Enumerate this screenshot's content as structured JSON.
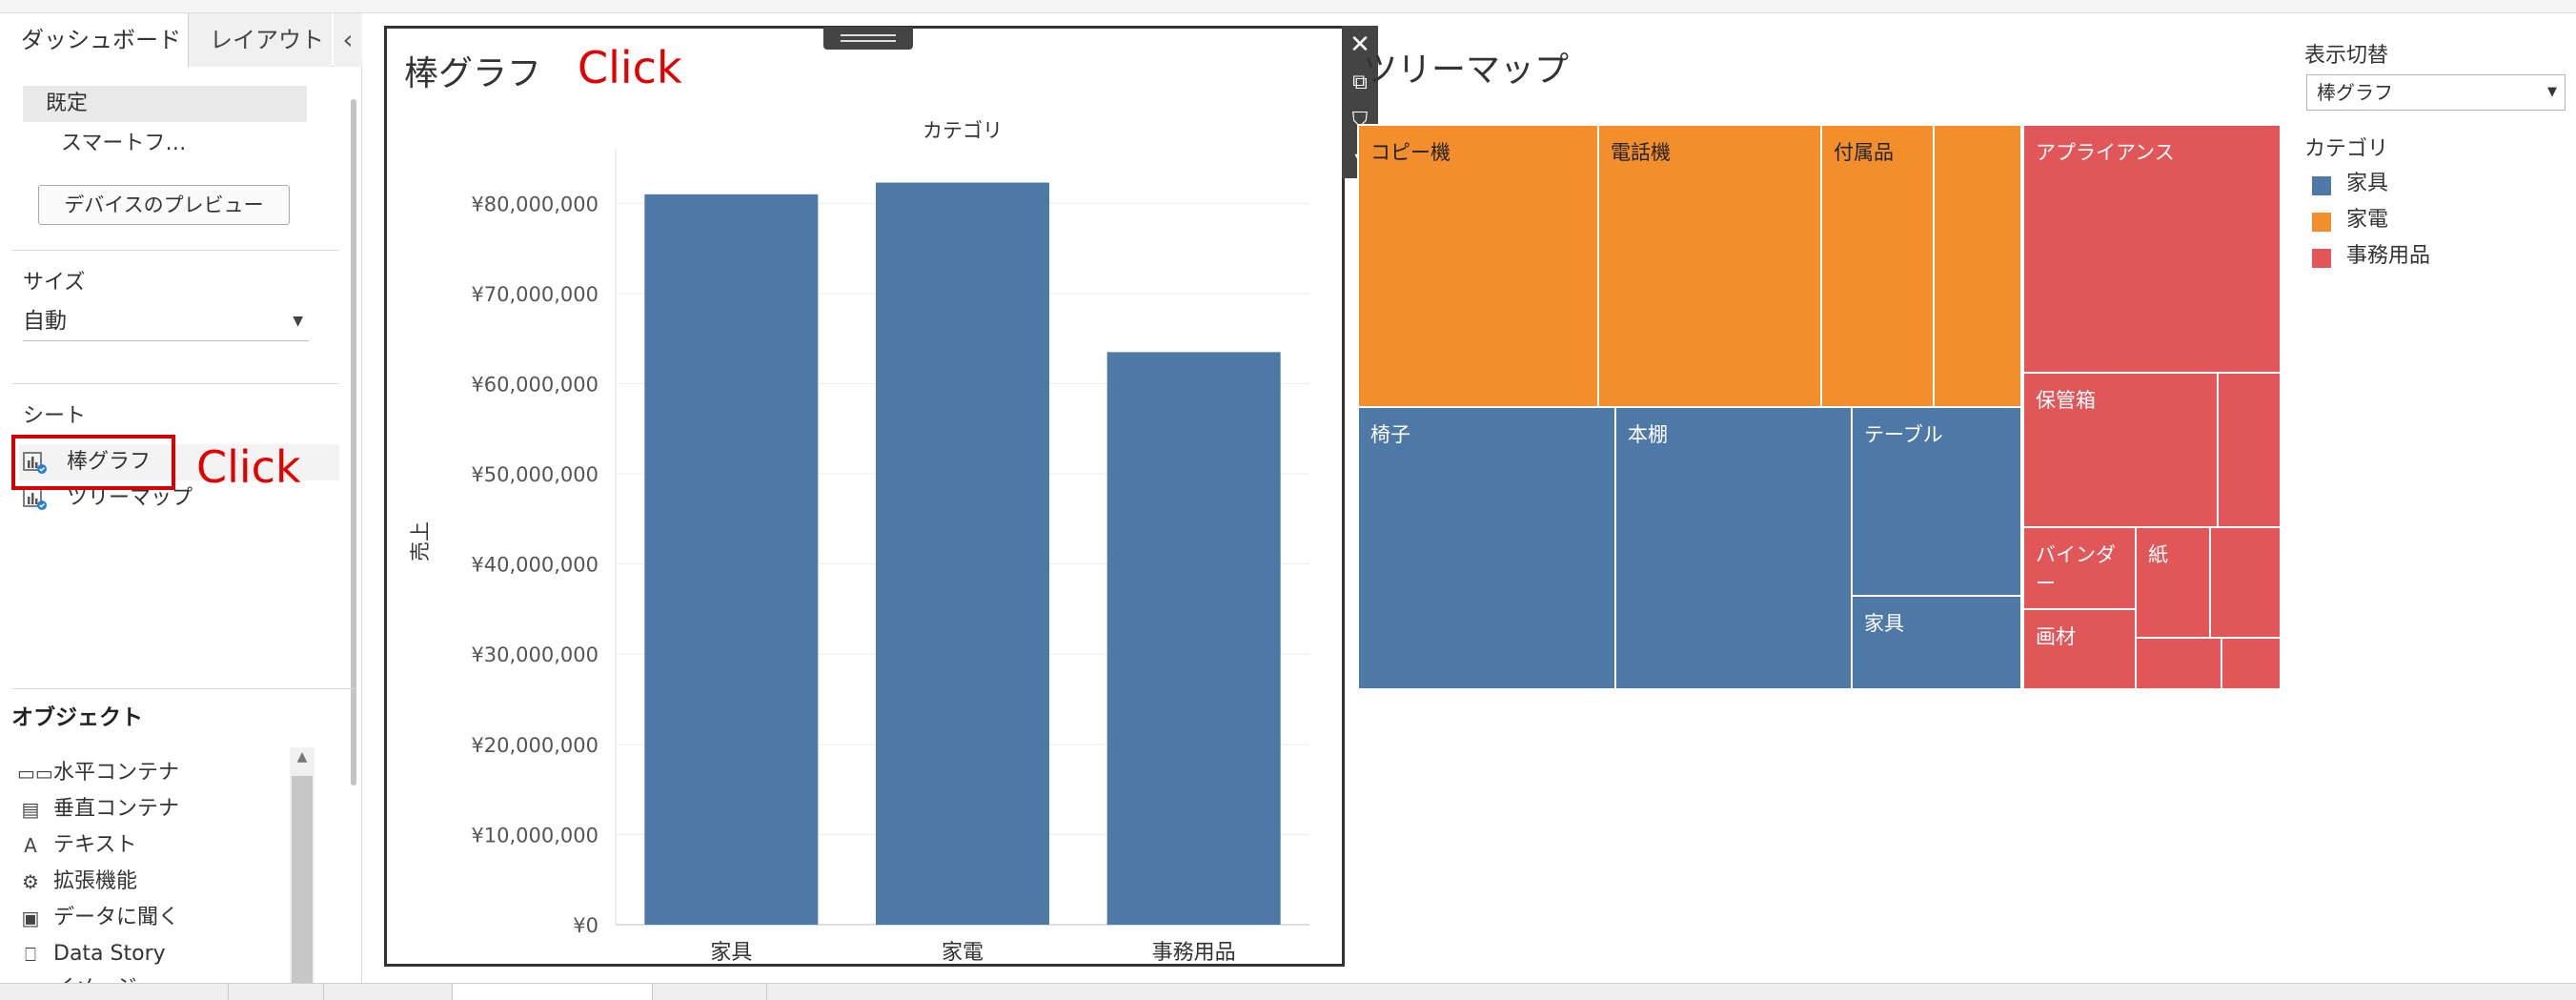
{
  "sidebar": {
    "tabs": [
      "ダッシュボード",
      "レイアウト"
    ],
    "collapse_icon": "‹",
    "device": {
      "preset": "既定",
      "sub": "スマートフ…",
      "preview_button": "デバイスのプレビュー"
    },
    "size": {
      "label": "サイズ",
      "value": "自動"
    },
    "sheets": {
      "label": "シート",
      "items": [
        "棒グラフ",
        "ツリーマップ"
      ],
      "annotation": "Click"
    },
    "objects": {
      "label": "オブジェクト",
      "items": [
        {
          "icon": "▭▭",
          "label": "水平コンテナ"
        },
        {
          "icon": "▤",
          "label": "垂直コンテナ"
        },
        {
          "icon": "A",
          "label": "テキスト"
        },
        {
          "icon": "⚙",
          "label": "拡張機能"
        },
        {
          "icon": "▣",
          "label": "データに聞く"
        },
        {
          "icon": "⎕",
          "label": "Data Story"
        },
        {
          "icon": "▨",
          "label": "イメージ"
        }
      ]
    }
  },
  "bar_panel": {
    "title": "棒グラフ",
    "annotation": "Click",
    "controls": [
      "✕",
      "⧉",
      "⛉",
      "▾"
    ]
  },
  "chart_data": {
    "type": "bar",
    "title": "カテゴリ",
    "xlabel": "",
    "ylabel": "売上",
    "categories": [
      "家具",
      "家電",
      "事務用品"
    ],
    "values": [
      81000000,
      82300000,
      63500000
    ],
    "ylim": [
      0,
      85000000
    ],
    "yticks": [
      0,
      10000000,
      20000000,
      30000000,
      40000000,
      50000000,
      60000000,
      70000000,
      80000000
    ],
    "ytick_labels": [
      "¥0",
      "¥10,000,000",
      "¥20,000,000",
      "¥30,000,000",
      "¥40,000,000",
      "¥50,000,000",
      "¥60,000,000",
      "¥70,000,000",
      "¥80,000,000"
    ],
    "color": "#4e79a7",
    "grid": true
  },
  "treemap": {
    "title": "ツリーマップ",
    "cells": {
      "copier": "コピー機",
      "phone": "電話機",
      "accessories": "付属品",
      "appliance": "アプライアンス",
      "chair": "椅子",
      "bookshelf": "本棚",
      "table": "テーブル",
      "furniture": "家具",
      "storage": "保管箱",
      "binder": "バインダー",
      "paper": "紙",
      "art": "画材"
    }
  },
  "right_panel": {
    "switch_label": "表示切替",
    "switch_value": "棒グラフ",
    "legend_title": "カテゴリ",
    "legend": [
      {
        "label": "家具",
        "color": "#4e79a7"
      },
      {
        "label": "家電",
        "color": "#f28e2b"
      },
      {
        "label": "事務用品",
        "color": "#e15759"
      }
    ]
  }
}
